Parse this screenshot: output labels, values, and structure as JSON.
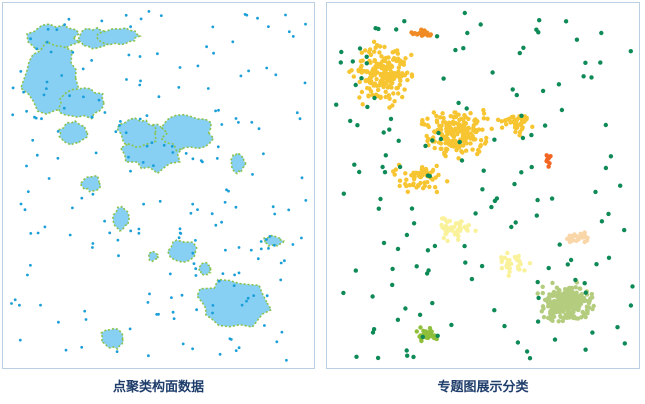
{
  "panels": [
    {
      "caption": "点聚类构面数据"
    },
    {
      "caption": "专题图展示分类"
    }
  ],
  "colors": {
    "panel_border": "#bcd0e4",
    "point_blue": "#1a9fd8",
    "polygon_fill": "#87d0f4",
    "polygon_outline_green": "#8bc34a",
    "polygon_outline_yellow": "#f0d24a",
    "category_orange": "#f08a24",
    "category_dark_orange": "#f26522",
    "category_gold": "#f7c531",
    "category_pale_yellow": "#faf29a",
    "category_peach": "#f9d6a8",
    "category_olive": "#b4cc7e",
    "category_lime": "#8fbf3a",
    "category_green": "#0e8a57"
  }
}
